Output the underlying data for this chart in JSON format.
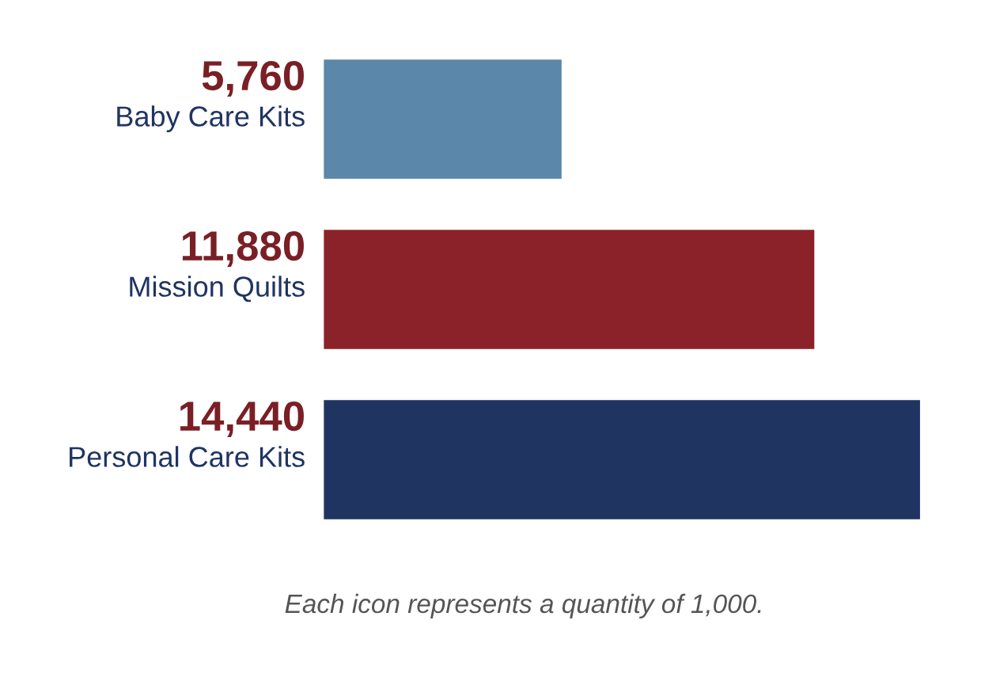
{
  "chart_data": {
    "type": "bar",
    "orientation": "horizontal",
    "categories": [
      "Baby Care Kits",
      "Mission Quilts",
      "Personal Care Kits"
    ],
    "values": [
      5760,
      11880,
      14440
    ],
    "colors": [
      "#5b87aa",
      "#8c2229",
      "#1f3461"
    ],
    "value_labels": [
      "5,760",
      "11,880",
      "14,440"
    ],
    "annotations": [
      "Each icon represents a quantity of 1,000."
    ]
  }
}
